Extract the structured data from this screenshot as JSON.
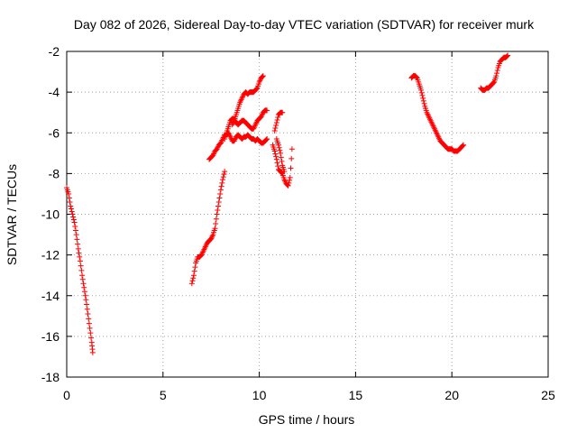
{
  "chart_data": {
    "type": "scatter",
    "title": "Day 082 of 2026, Sidereal Day-to-day VTEC variation (SDTVAR) for receiver murk",
    "xlabel": "GPS time / hours",
    "ylabel": "SDTVAR / TECUs",
    "xlim": [
      0,
      25
    ],
    "ylim": [
      -18,
      -2
    ],
    "x_ticks": [
      0,
      5,
      10,
      15,
      20,
      25
    ],
    "y_ticks": [
      -2,
      -4,
      -6,
      -8,
      -10,
      -12,
      -14,
      -16,
      -18
    ],
    "grid": true,
    "marker": "plus",
    "color": "#ff0000",
    "series": [
      {
        "x": [
          0.0,
          0.1,
          0.2,
          0.3,
          0.4,
          0.5,
          0.6,
          0.7,
          0.8,
          0.9,
          1.0,
          1.1,
          1.2,
          1.3,
          1.35
        ],
        "y": [
          -8.7,
          -9.0,
          -9.6,
          -10.0,
          -10.4,
          -11.0,
          -11.7,
          -12.3,
          -13.0,
          -13.6,
          -14.2,
          -14.9,
          -15.6,
          -16.3,
          -16.8
        ]
      },
      {
        "x": [
          6.5,
          6.6,
          6.7,
          6.8,
          6.9,
          7.0,
          7.1,
          7.2,
          7.3,
          7.4,
          7.5,
          7.6,
          7.7,
          7.8,
          7.9,
          8.0,
          8.1,
          8.2
        ],
        "y": [
          -13.4,
          -13.0,
          -12.4,
          -12.1,
          -12.1,
          -12.0,
          -11.8,
          -11.6,
          -11.4,
          -11.3,
          -11.2,
          -11.0,
          -10.7,
          -10.0,
          -9.4,
          -8.8,
          -8.3,
          -7.9
        ]
      },
      {
        "x": [
          7.4,
          7.5,
          7.6,
          7.7,
          7.8,
          7.9,
          8.0,
          8.1,
          8.2,
          8.3,
          8.4,
          8.5,
          8.6,
          8.7,
          8.8,
          8.9,
          9.0,
          9.1,
          9.2,
          9.3,
          9.4,
          9.5,
          9.6,
          9.7,
          9.8,
          9.9,
          10.0,
          10.1,
          10.2,
          10.3,
          10.4
        ],
        "y": [
          -7.3,
          -7.2,
          -7.1,
          -6.9,
          -6.8,
          -6.6,
          -6.5,
          -6.3,
          -6.1,
          -6.1,
          -6.0,
          -6.2,
          -6.4,
          -6.4,
          -6.2,
          -6.1,
          -6.2,
          -6.3,
          -6.2,
          -6.2,
          -6.1,
          -6.2,
          -6.3,
          -6.3,
          -6.4,
          -6.3,
          -6.4,
          -6.5,
          -6.5,
          -6.4,
          -6.3
        ]
      },
      {
        "x": [
          8.2,
          8.3,
          8.4,
          8.5,
          8.6,
          8.7,
          8.8,
          8.9,
          9.0,
          9.1,
          9.2,
          9.3,
          9.4,
          9.5,
          9.6,
          9.7,
          9.8,
          9.9,
          10.0,
          10.1,
          10.2,
          10.3,
          10.4
        ],
        "y": [
          -6.3,
          -6.0,
          -5.7,
          -5.4,
          -5.3,
          -5.3,
          -5.5,
          -5.6,
          -5.5,
          -5.4,
          -5.4,
          -5.5,
          -5.6,
          -5.7,
          -5.8,
          -5.8,
          -5.6,
          -5.4,
          -5.3,
          -5.2,
          -5.0,
          -4.9,
          -4.9
        ]
      },
      {
        "x": [
          8.6,
          8.7,
          8.8,
          8.9,
          9.0,
          9.1,
          9.2,
          9.3,
          9.4,
          9.5,
          9.6,
          9.7,
          9.8,
          9.9,
          10.0,
          10.1,
          10.2
        ],
        "y": [
          -5.6,
          -5.4,
          -5.1,
          -4.8,
          -4.5,
          -4.3,
          -4.1,
          -4.0,
          -4.1,
          -4.0,
          -4.0,
          -4.0,
          -3.9,
          -3.8,
          -3.5,
          -3.3,
          -3.2
        ]
      },
      {
        "x": [
          10.7,
          10.8,
          10.9,
          11.0,
          11.1,
          11.2,
          11.3,
          11.4,
          11.5,
          11.6,
          11.7
        ],
        "y": [
          -6.6,
          -6.9,
          -7.3,
          -7.8,
          -7.9,
          -8.0,
          -8.3,
          -8.5,
          -8.6,
          -8.2,
          -6.8
        ]
      },
      {
        "x": [
          10.8,
          10.9,
          11.0,
          11.1,
          11.2
        ],
        "y": [
          -5.9,
          -5.5,
          -5.1,
          -5.0,
          -5.0
        ]
      },
      {
        "x": [
          10.9,
          11.0,
          11.1,
          11.2,
          11.3
        ],
        "y": [
          -6.3,
          -6.6,
          -7.0,
          -7.6,
          -7.9
        ]
      },
      {
        "x": [
          17.9,
          18.0,
          18.1,
          18.2,
          18.3,
          18.4,
          18.5,
          18.6,
          18.7,
          18.8,
          18.9,
          19.0,
          19.1,
          19.2,
          19.3,
          19.4,
          19.5,
          19.6,
          19.7,
          19.8,
          19.9,
          20.0,
          20.1,
          20.2,
          20.3,
          20.4,
          20.5,
          20.6
        ],
        "y": [
          -3.3,
          -3.2,
          -3.2,
          -3.3,
          -3.6,
          -3.9,
          -4.3,
          -4.7,
          -5.0,
          -5.2,
          -5.4,
          -5.6,
          -5.8,
          -6.0,
          -6.2,
          -6.4,
          -6.5,
          -6.6,
          -6.7,
          -6.8,
          -6.8,
          -6.8,
          -6.9,
          -6.9,
          -6.9,
          -6.8,
          -6.7,
          -6.6
        ]
      },
      {
        "x": [
          21.5,
          21.6,
          21.7,
          21.8,
          21.9,
          22.0,
          22.1,
          22.2,
          22.3,
          22.4,
          22.5,
          22.6,
          22.7,
          22.8,
          22.9
        ],
        "y": [
          -3.8,
          -3.9,
          -3.9,
          -3.8,
          -3.8,
          -3.7,
          -3.6,
          -3.5,
          -3.2,
          -2.8,
          -2.5,
          -2.4,
          -2.3,
          -2.3,
          -2.2
        ]
      }
    ]
  }
}
